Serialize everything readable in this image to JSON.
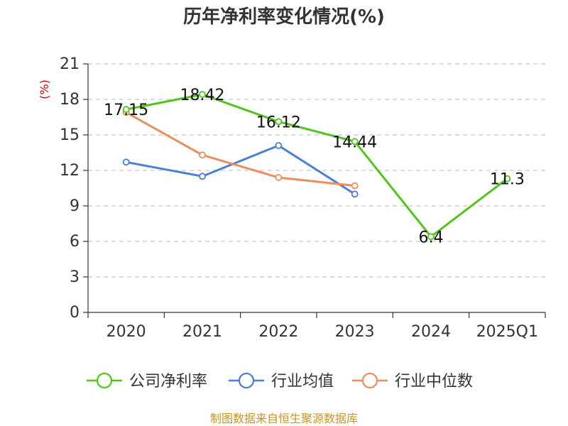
{
  "chart_data": {
    "type": "line",
    "title": "历年净利率变化情况(%)",
    "ylabel": "(%)",
    "categories": [
      "2020",
      "2021",
      "2022",
      "2023",
      "2024",
      "2025Q1"
    ],
    "ylim": [
      0,
      21
    ],
    "yticks": [
      0,
      3,
      6,
      9,
      12,
      15,
      18,
      21
    ],
    "grid": true,
    "legend_position": "bottom",
    "series": [
      {
        "name": "公司净利率",
        "color": "#52c41a",
        "values": [
          17.15,
          18.42,
          16.12,
          14.44,
          6.4,
          11.3
        ],
        "labels": [
          "17.15",
          "18.42",
          "16.12",
          "14.44",
          "6.4",
          "11.3"
        ]
      },
      {
        "name": "行业均值",
        "color": "#4a7fd6",
        "values": [
          12.7,
          11.5,
          14.1,
          10.0,
          null,
          null
        ]
      },
      {
        "name": "行业中位数",
        "color": "#f08c5a",
        "values": [
          16.9,
          13.3,
          11.4,
          10.7,
          null,
          null
        ]
      }
    ]
  },
  "source_text": "制图数据来自恒生聚源数据库"
}
